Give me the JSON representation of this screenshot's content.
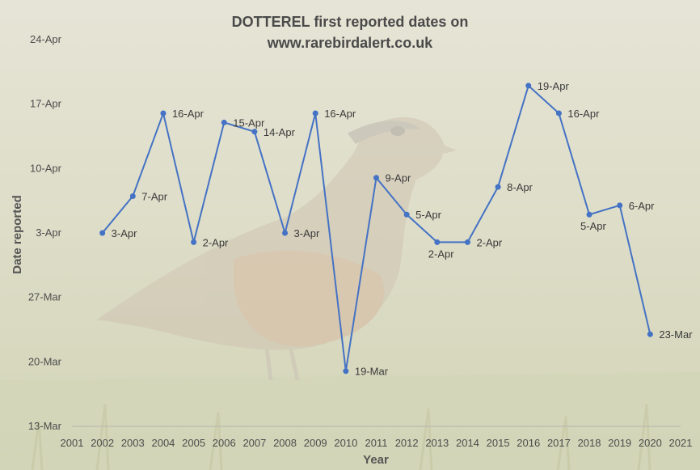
{
  "chart_data": {
    "type": "line",
    "title": "DOTTEREL first reported dates on",
    "subtitle": "www.rarebirdalert.co.uk",
    "xlabel": "Year",
    "ylabel": "Date reported",
    "x_ticks": [
      "2001",
      "2002",
      "2003",
      "2004",
      "2005",
      "2006",
      "2007",
      "2008",
      "2009",
      "2010",
      "2011",
      "2012",
      "2013",
      "2014",
      "2015",
      "2016",
      "2017",
      "2018",
      "2019",
      "2020",
      "2021"
    ],
    "y_ticks": [
      "13-Mar",
      "20-Mar",
      "27-Mar",
      "3-Apr",
      "10-Apr",
      "17-Apr",
      "24-Apr"
    ],
    "xlim": [
      2001,
      2021
    ],
    "ylim": [
      "13-Mar",
      "24-Apr"
    ],
    "grid": false,
    "legend": "none",
    "series": [
      {
        "color": "#4472c4",
        "points": [
          {
            "x": 2002,
            "y": "3-Apr",
            "label": "3-Apr"
          },
          {
            "x": 2003,
            "y": "7-Apr",
            "label": "7-Apr"
          },
          {
            "x": 2004,
            "y": "16-Apr",
            "label": "16-Apr"
          },
          {
            "x": 2005,
            "y": "2-Apr",
            "label": "2-Apr"
          },
          {
            "x": 2006,
            "y": "15-Apr",
            "label": "15-Apr"
          },
          {
            "x": 2007,
            "y": "14-Apr",
            "label": "14-Apr"
          },
          {
            "x": 2008,
            "y": "3-Apr",
            "label": "3-Apr"
          },
          {
            "x": 2009,
            "y": "16-Apr",
            "label": "16-Apr"
          },
          {
            "x": 2010,
            "y": "19-Mar",
            "label": "19-Mar"
          },
          {
            "x": 2011,
            "y": "9-Apr",
            "label": "9-Apr"
          },
          {
            "x": 2012,
            "y": "5-Apr",
            "label": "5-Apr"
          },
          {
            "x": 2013,
            "y": "2-Apr",
            "label": "2-Apr"
          },
          {
            "x": 2014,
            "y": "2-Apr",
            "label": "2-Apr"
          },
          {
            "x": 2015,
            "y": "8-Apr",
            "label": "8-Apr"
          },
          {
            "x": 2016,
            "y": "19-Apr",
            "label": "19-Apr"
          },
          {
            "x": 2017,
            "y": "16-Apr",
            "label": "16-Apr"
          },
          {
            "x": 2018,
            "y": "5-Apr",
            "label": "5-Apr"
          },
          {
            "x": 2019,
            "y": "6-Apr",
            "label": "6-Apr"
          },
          {
            "x": 2020,
            "y": "23-Mar",
            "label": "23-Mar"
          }
        ]
      }
    ]
  }
}
